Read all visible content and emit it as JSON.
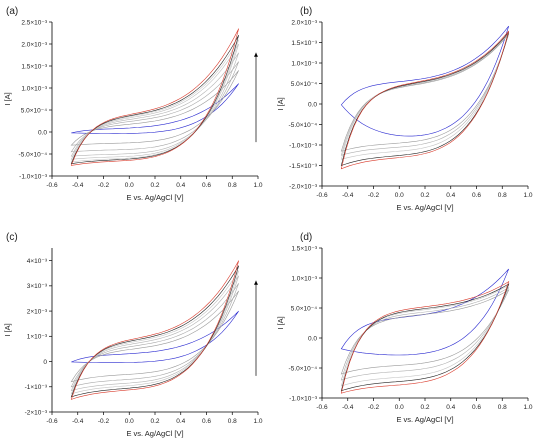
{
  "chart_data": [
    {
      "type": "line",
      "panel_label": "(a)",
      "xlabel": "E vs. Ag/AgCl [V]",
      "ylabel": "I [A]",
      "xlim": [
        -0.6,
        1.0
      ],
      "ylim": [
        -0.001,
        0.0025
      ],
      "x_ticks": [
        "-0.6",
        "-0.4",
        "-0.2",
        "0.0",
        "0.2",
        "0.4",
        "0.6",
        "0.8",
        "1.0"
      ],
      "y_ticks": [
        "-1.0×10⁻³",
        "-5.0×10⁻⁴",
        "0.0",
        "5.0×10⁻⁴",
        "1.0×10⁻³",
        "1.5×10⁻³",
        "2.0×10⁻³",
        "2.5×10⁻³"
      ],
      "y_tick_values": [
        -0.001,
        -0.0005,
        0,
        0.0005,
        0.001,
        0.0015,
        0.002,
        0.0025
      ],
      "arrow": "up",
      "potential_range": [
        -0.45,
        0.85
      ],
      "cycles": [
        {
          "color": "#2a2ad0",
          "i_low": -2e-05,
          "i_high": 0.0011,
          "upper": 8e-05,
          "lower": -4e-05
        },
        {
          "color": "#9a9a9a",
          "i_low": -0.0003,
          "i_high": 0.0014,
          "upper": 0.00018,
          "lower": -0.00025
        },
        {
          "color": "#a8a8a8",
          "i_low": -0.00045,
          "i_high": 0.0016,
          "upper": 0.00025,
          "lower": -0.0004
        },
        {
          "color": "#b4b4b4",
          "i_low": -0.00055,
          "i_high": 0.0018,
          "upper": 0.0003,
          "lower": -0.0005
        },
        {
          "color": "#bfbfbf",
          "i_low": -0.00062,
          "i_high": 0.002,
          "upper": 0.00034,
          "lower": -0.00056
        },
        {
          "color": "#c9c9c9",
          "i_low": -0.00068,
          "i_high": 0.0021,
          "upper": 0.00037,
          "lower": -0.0006
        },
        {
          "color": "#222222",
          "i_low": -0.00072,
          "i_high": 0.0022,
          "upper": 0.00039,
          "lower": -0.00062
        },
        {
          "color": "#d93a2b",
          "i_low": -0.00076,
          "i_high": 0.00235,
          "upper": 0.00042,
          "lower": -0.00065
        }
      ]
    },
    {
      "type": "line",
      "panel_label": "(b)",
      "xlabel": "E vs. Ag/AgCl [V]",
      "ylabel": "I [A]",
      "xlim": [
        -0.6,
        1.0
      ],
      "ylim": [
        -0.002,
        0.002
      ],
      "x_ticks": [
        "-0.6",
        "-0.4",
        "-0.2",
        "0.0",
        "0.2",
        "0.4",
        "0.6",
        "0.8",
        "1.0"
      ],
      "y_ticks": [
        "-2.0×10⁻³",
        "-1.5×10⁻³",
        "-1.0×10⁻³",
        "-5.0×10⁻⁴",
        "0.0",
        "5.0×10⁻⁴",
        "1.0×10⁻³",
        "1.5×10⁻³",
        "2.0×10⁻³"
      ],
      "y_tick_values": [
        -0.002,
        -0.0015,
        -0.001,
        -0.0005,
        0,
        0.0005,
        0.001,
        0.0015,
        0.002
      ],
      "arrow": "none",
      "potential_range": [
        -0.45,
        0.85
      ],
      "cycles": [
        {
          "color": "#2a2ad0",
          "i_low": -2e-05,
          "i_high": 0.0019,
          "upper": 0.00055,
          "lower": -0.00085
        },
        {
          "color": "#9a9a9a",
          "i_low": -0.00115,
          "i_high": 0.0017,
          "upper": 0.00045,
          "lower": -0.00095
        },
        {
          "color": "#b0b0b0",
          "i_low": -0.00125,
          "i_high": 0.00172,
          "upper": 0.00047,
          "lower": -0.00105
        },
        {
          "color": "#c4c4c4",
          "i_low": -0.00135,
          "i_high": 0.00174,
          "upper": 0.00049,
          "lower": -0.00115
        },
        {
          "color": "#222222",
          "i_low": -0.0015,
          "i_high": 0.00175,
          "upper": 0.0005,
          "lower": -0.00125
        },
        {
          "color": "#d93a2b",
          "i_low": -0.00158,
          "i_high": 0.00178,
          "upper": 0.00052,
          "lower": -0.0013
        }
      ]
    },
    {
      "type": "line",
      "panel_label": "(c)",
      "xlabel": "E vs. Ag/AgCl [V]",
      "ylabel": "I [A]",
      "xlim": [
        -0.6,
        1.0
      ],
      "ylim": [
        -0.002,
        0.0045
      ],
      "x_ticks": [
        "-0.6",
        "-0.4",
        "-0.2",
        "0.0",
        "0.2",
        "0.4",
        "0.6",
        "0.8",
        "1.0"
      ],
      "y_ticks": [
        "-2×10⁻³",
        "-1×10⁻³",
        "0",
        "1×10⁻³",
        "2×10⁻³",
        "3×10⁻³",
        "4×10⁻³"
      ],
      "y_tick_values": [
        -0.002,
        -0.001,
        0,
        0.001,
        0.002,
        0.003,
        0.004
      ],
      "arrow": "up",
      "potential_range": [
        -0.45,
        0.85
      ],
      "cycles": [
        {
          "color": "#2a2ad0",
          "i_low": -2e-05,
          "i_high": 0.002,
          "upper": 0.0003,
          "lower": -5e-05
        },
        {
          "color": "#9a9a9a",
          "i_low": -0.0008,
          "i_high": 0.0028,
          "upper": 0.0005,
          "lower": -0.0005
        },
        {
          "color": "#a8a8a8",
          "i_low": -0.001,
          "i_high": 0.0031,
          "upper": 0.00062,
          "lower": -0.0007
        },
        {
          "color": "#b4b4b4",
          "i_low": -0.00115,
          "i_high": 0.0034,
          "upper": 0.00072,
          "lower": -0.00085
        },
        {
          "color": "#c4c4c4",
          "i_low": -0.00128,
          "i_high": 0.0036,
          "upper": 0.0008,
          "lower": -0.00095
        },
        {
          "color": "#222222",
          "i_low": -0.0014,
          "i_high": 0.0038,
          "upper": 0.00086,
          "lower": -0.00105
        },
        {
          "color": "#d93a2b",
          "i_low": -0.0015,
          "i_high": 0.004,
          "upper": 0.00092,
          "lower": -0.00112
        }
      ]
    },
    {
      "type": "line",
      "panel_label": "(d)",
      "xlabel": "E vs. Ag/AgCl [V]",
      "ylabel": "I [A]",
      "xlim": [
        -0.6,
        1.0
      ],
      "ylim": [
        -0.001,
        0.0015
      ],
      "x_ticks": [
        "-0.6",
        "-0.4",
        "-0.2",
        "0.0",
        "0.2",
        "0.4",
        "0.6",
        "0.8",
        "1.0"
      ],
      "y_ticks": [
        "-1.0×10⁻³",
        "-5.0×10⁻⁴",
        "0.0",
        "5.0×10⁻⁴",
        "1.0×10⁻³",
        "1.5×10⁻³"
      ],
      "y_tick_values": [
        -0.001,
        -0.0005,
        0,
        0.0005,
        0.001,
        0.0015
      ],
      "arrow": "none",
      "potential_range": [
        -0.45,
        0.85
      ],
      "cycles": [
        {
          "color": "#2a2ad0",
          "i_low": -0.00018,
          "i_high": 0.00115,
          "upper": 0.00035,
          "lower": -0.0003
        },
        {
          "color": "#9a9a9a",
          "i_low": -0.0006,
          "i_high": 0.0008,
          "upper": 0.00038,
          "lower": -0.00045
        },
        {
          "color": "#b0b0b0",
          "i_low": -0.0007,
          "i_high": 0.00084,
          "upper": 0.00042,
          "lower": -0.00055
        },
        {
          "color": "#c4c4c4",
          "i_low": -0.0008,
          "i_high": 0.00088,
          "upper": 0.00046,
          "lower": -0.00065
        },
        {
          "color": "#222222",
          "i_low": -0.00088,
          "i_high": 0.0009,
          "upper": 0.00048,
          "lower": -0.00072
        },
        {
          "color": "#d93a2b",
          "i_low": -0.00092,
          "i_high": 0.00094,
          "upper": 0.00051,
          "lower": -0.00078
        }
      ]
    }
  ]
}
